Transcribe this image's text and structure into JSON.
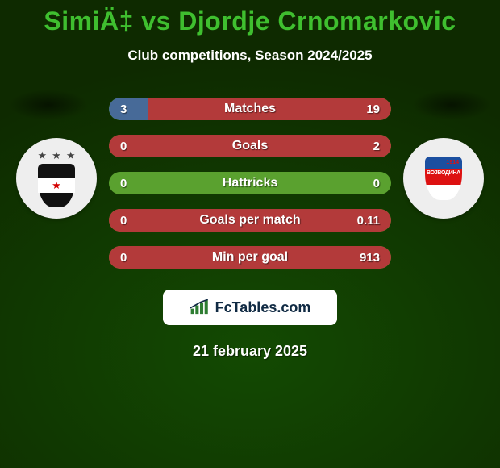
{
  "colors": {
    "page_bg_top": "#0e2a00",
    "page_bg_bottom": "#134a02",
    "title": "#3fbf2f",
    "subtitle": "#ffffff",
    "spot_shadow": "#0a1f00",
    "crest_bg": "#eeeeee",
    "pill_base": "#5aa12f",
    "pill_p1": "#476a98",
    "pill_p2": "#b33a3a",
    "stat_text": "#ffffff",
    "brand_bg": "#ffffff",
    "brand_text": "#102a43",
    "brand_accent": "#2e7d32",
    "date_text": "#ffffff"
  },
  "title": "SimiÄ‡ vs Djordje Crnomarkovic",
  "subtitle": "Club competitions, Season 2024/2025",
  "date": "21 february 2025",
  "brand": "FcTables.com",
  "left_team": "Partizan",
  "right_team": "Vojvodina",
  "stats": [
    {
      "label": "Matches",
      "p1": "3",
      "p2": "19",
      "p1_pct": 14,
      "p2_pct": 86
    },
    {
      "label": "Goals",
      "p1": "0",
      "p2": "2",
      "p1_pct": 0,
      "p2_pct": 100
    },
    {
      "label": "Hattricks",
      "p1": "0",
      "p2": "0",
      "p1_pct": 0,
      "p2_pct": 0
    },
    {
      "label": "Goals per match",
      "p1": "0",
      "p2": "0.11",
      "p1_pct": 0,
      "p2_pct": 100
    },
    {
      "label": "Min per goal",
      "p1": "0",
      "p2": "913",
      "p1_pct": 0,
      "p2_pct": 100
    }
  ],
  "typography": {
    "title_fontsize": 32,
    "subtitle_fontsize": 17,
    "stat_fontsize": 15,
    "date_fontsize": 18
  }
}
